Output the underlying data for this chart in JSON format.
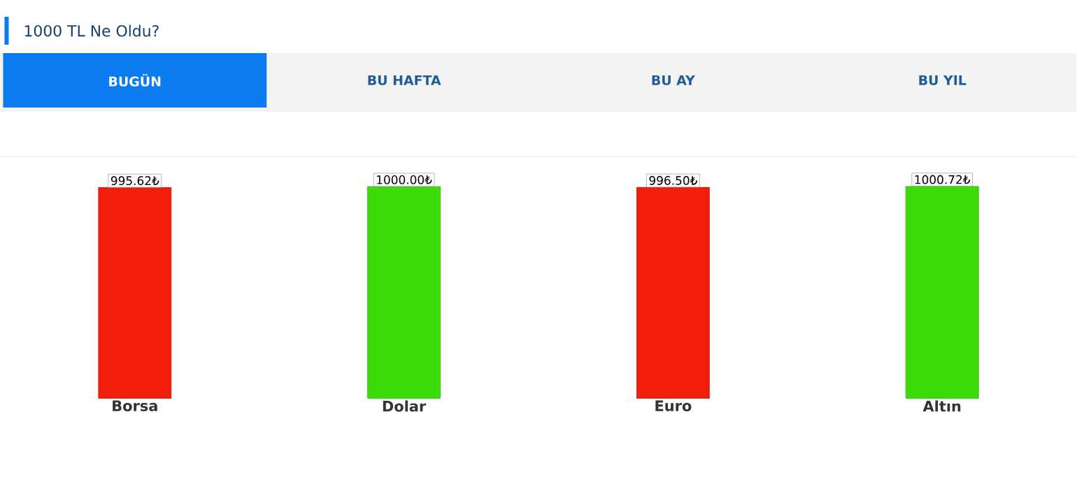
{
  "chart_data": {
    "type": "bar",
    "title": "1000 TL Ne Oldu?",
    "annotations": [
      "BUGÜN",
      "BU HAFTA",
      "BU AY",
      "BU YIL"
    ],
    "categories": [
      "Borsa",
      "Dolar",
      "Euro",
      "Altın"
    ],
    "values": [
      995.62,
      1000.0,
      996.5,
      1000.72
    ],
    "value_labels": [
      "995.62₺",
      "1000.00₺",
      "996.50₺",
      "1000.72₺"
    ],
    "colors": [
      "#f21e0c",
      "#3cdc0a",
      "#f21e0c",
      "#3cdc0a"
    ],
    "tick_labels": "x"
  }
}
